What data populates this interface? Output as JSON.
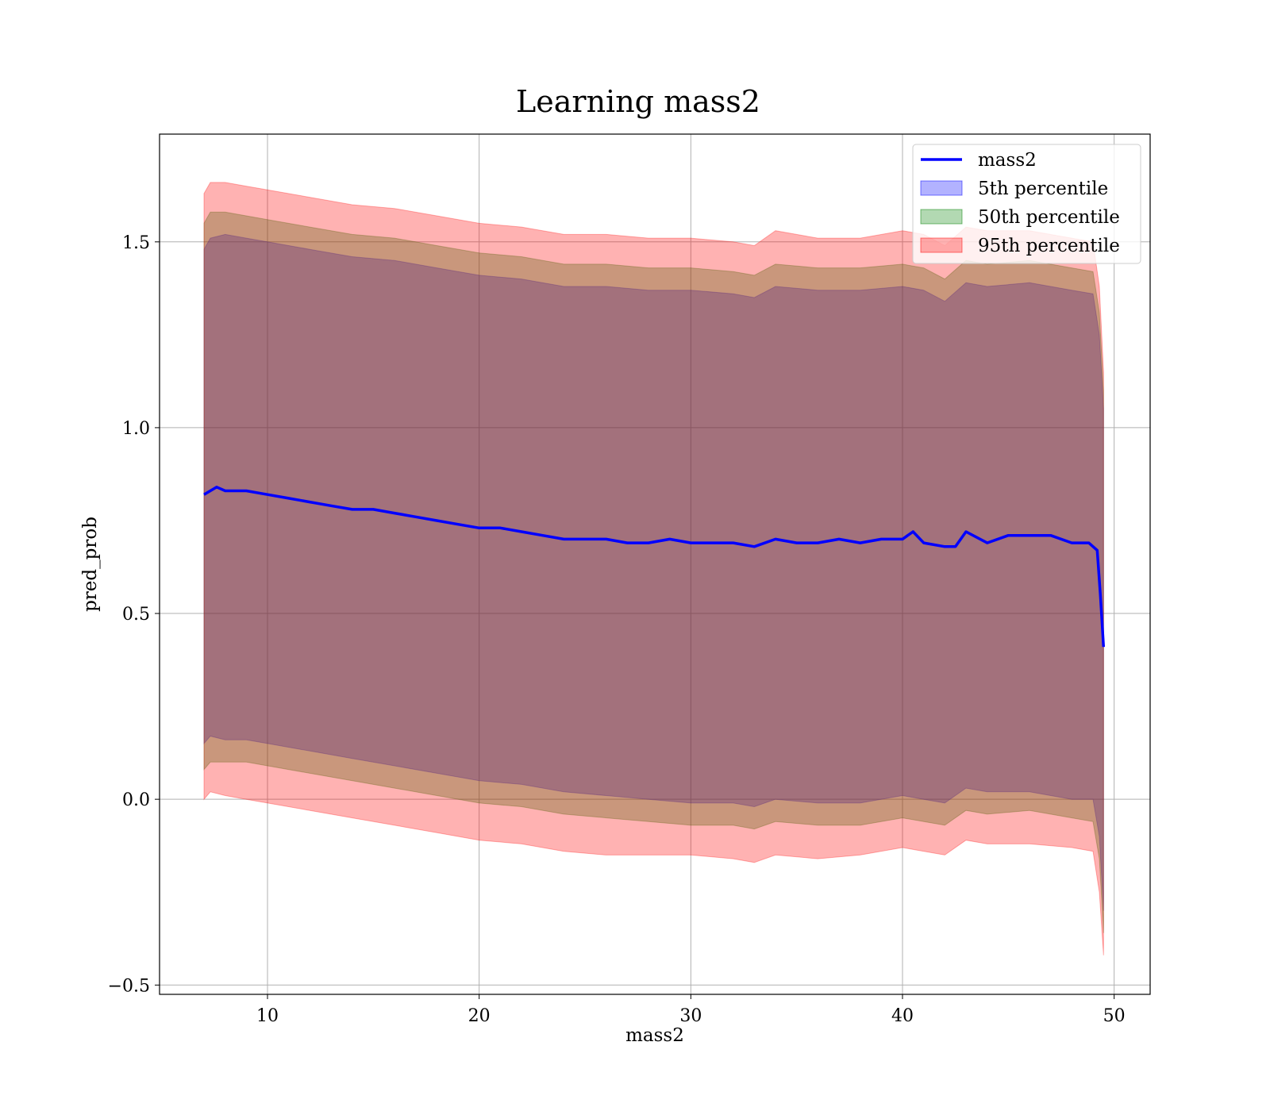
{
  "chart_data": {
    "type": "line",
    "title": "Learning mass2",
    "xlabel": "mass2",
    "ylabel": "pred_prob",
    "xlim": [
      4.9,
      51.7
    ],
    "ylim": [
      -0.525,
      1.79
    ],
    "x_ticks": [
      10,
      20,
      30,
      40,
      50
    ],
    "x_tick_labels": [
      "10",
      "20",
      "30",
      "40",
      "50"
    ],
    "y_ticks": [
      -0.5,
      0.0,
      0.5,
      1.0,
      1.5
    ],
    "y_tick_labels": [
      "−0.5",
      "0.0",
      "0.5",
      "1.0",
      "1.5"
    ],
    "grid": true,
    "legend_position": "top-right",
    "colors": {
      "line": "#0000ff",
      "band_5th": "#0000ff",
      "band_50th": "#008000",
      "band_95th": "#ff0000",
      "band_alpha": 0.3
    },
    "series": [
      {
        "name": "mass2",
        "kind": "line",
        "x": [
          7.0,
          7.3,
          7.6,
          8.0,
          8.5,
          9.0,
          10.0,
          11.0,
          12.0,
          13.0,
          14.0,
          15.0,
          16.0,
          17.0,
          18.0,
          19.0,
          20.0,
          21.0,
          22.0,
          23.0,
          24.0,
          25.0,
          26.0,
          27.0,
          28.0,
          29.0,
          30.0,
          31.0,
          32.0,
          33.0,
          34.0,
          35.0,
          36.0,
          37.0,
          38.0,
          39.0,
          40.0,
          40.5,
          41.0,
          42.0,
          42.5,
          43.0,
          44.0,
          45.0,
          46.0,
          47.0,
          48.0,
          48.8,
          49.2,
          49.35,
          49.5
        ],
        "y": [
          0.82,
          0.83,
          0.84,
          0.83,
          0.83,
          0.83,
          0.82,
          0.81,
          0.8,
          0.79,
          0.78,
          0.78,
          0.77,
          0.76,
          0.75,
          0.74,
          0.73,
          0.73,
          0.72,
          0.71,
          0.7,
          0.7,
          0.7,
          0.69,
          0.69,
          0.7,
          0.69,
          0.69,
          0.69,
          0.68,
          0.7,
          0.69,
          0.69,
          0.7,
          0.69,
          0.7,
          0.7,
          0.72,
          0.69,
          0.68,
          0.68,
          0.72,
          0.69,
          0.71,
          0.71,
          0.71,
          0.69,
          0.69,
          0.67,
          0.55,
          0.41
        ]
      },
      {
        "name": "5th percentile",
        "kind": "band",
        "x": [
          7.0,
          7.3,
          8.0,
          9.0,
          10.0,
          12.0,
          14.0,
          16.0,
          18.0,
          20.0,
          22.0,
          24.0,
          26.0,
          28.0,
          30.0,
          32.0,
          33.0,
          34.0,
          36.0,
          38.0,
          40.0,
          41.0,
          42.0,
          43.0,
          44.0,
          46.0,
          48.0,
          49.0,
          49.3,
          49.5
        ],
        "lower": [
          0.15,
          0.17,
          0.16,
          0.16,
          0.15,
          0.13,
          0.11,
          0.09,
          0.07,
          0.05,
          0.04,
          0.02,
          0.01,
          0.0,
          -0.01,
          -0.01,
          -0.02,
          0.0,
          -0.01,
          -0.01,
          0.01,
          0.0,
          -0.01,
          0.03,
          0.02,
          0.02,
          0.0,
          0.0,
          -0.1,
          -0.3
        ],
        "upper": [
          1.48,
          1.51,
          1.52,
          1.51,
          1.5,
          1.48,
          1.46,
          1.45,
          1.43,
          1.41,
          1.4,
          1.38,
          1.38,
          1.37,
          1.37,
          1.36,
          1.35,
          1.38,
          1.37,
          1.37,
          1.38,
          1.37,
          1.34,
          1.39,
          1.38,
          1.39,
          1.37,
          1.36,
          1.25,
          1.05
        ]
      },
      {
        "name": "50th percentile",
        "kind": "band",
        "x": [
          7.0,
          7.3,
          8.0,
          9.0,
          10.0,
          12.0,
          14.0,
          16.0,
          18.0,
          20.0,
          22.0,
          24.0,
          26.0,
          28.0,
          30.0,
          32.0,
          33.0,
          34.0,
          36.0,
          38.0,
          40.0,
          41.0,
          42.0,
          43.0,
          44.0,
          46.0,
          48.0,
          49.0,
          49.3,
          49.5
        ],
        "lower": [
          0.08,
          0.1,
          0.1,
          0.1,
          0.09,
          0.07,
          0.05,
          0.03,
          0.01,
          -0.01,
          -0.02,
          -0.04,
          -0.05,
          -0.06,
          -0.07,
          -0.07,
          -0.08,
          -0.06,
          -0.07,
          -0.07,
          -0.05,
          -0.06,
          -0.07,
          -0.03,
          -0.04,
          -0.03,
          -0.05,
          -0.06,
          -0.16,
          -0.36
        ],
        "upper": [
          1.55,
          1.58,
          1.58,
          1.57,
          1.56,
          1.54,
          1.52,
          1.51,
          1.49,
          1.47,
          1.46,
          1.44,
          1.44,
          1.43,
          1.43,
          1.42,
          1.41,
          1.44,
          1.43,
          1.43,
          1.44,
          1.43,
          1.4,
          1.45,
          1.44,
          1.45,
          1.43,
          1.42,
          1.31,
          1.1
        ]
      },
      {
        "name": "95th percentile",
        "kind": "band",
        "x": [
          7.0,
          7.3,
          8.0,
          9.0,
          10.0,
          12.0,
          14.0,
          16.0,
          18.0,
          20.0,
          22.0,
          24.0,
          26.0,
          28.0,
          30.0,
          32.0,
          33.0,
          34.0,
          36.0,
          38.0,
          40.0,
          41.0,
          42.0,
          43.0,
          44.0,
          46.0,
          48.0,
          49.0,
          49.3,
          49.5
        ],
        "lower": [
          0.0,
          0.02,
          0.01,
          0.0,
          -0.01,
          -0.03,
          -0.05,
          -0.07,
          -0.09,
          -0.11,
          -0.12,
          -0.14,
          -0.15,
          -0.15,
          -0.15,
          -0.16,
          -0.17,
          -0.15,
          -0.16,
          -0.15,
          -0.13,
          -0.14,
          -0.15,
          -0.11,
          -0.12,
          -0.12,
          -0.13,
          -0.14,
          -0.25,
          -0.42
        ],
        "upper": [
          1.63,
          1.66,
          1.66,
          1.65,
          1.64,
          1.62,
          1.6,
          1.59,
          1.57,
          1.55,
          1.54,
          1.52,
          1.52,
          1.51,
          1.51,
          1.5,
          1.49,
          1.53,
          1.51,
          1.51,
          1.53,
          1.52,
          1.49,
          1.54,
          1.53,
          1.53,
          1.51,
          1.5,
          1.38,
          1.15
        ]
      }
    ]
  }
}
